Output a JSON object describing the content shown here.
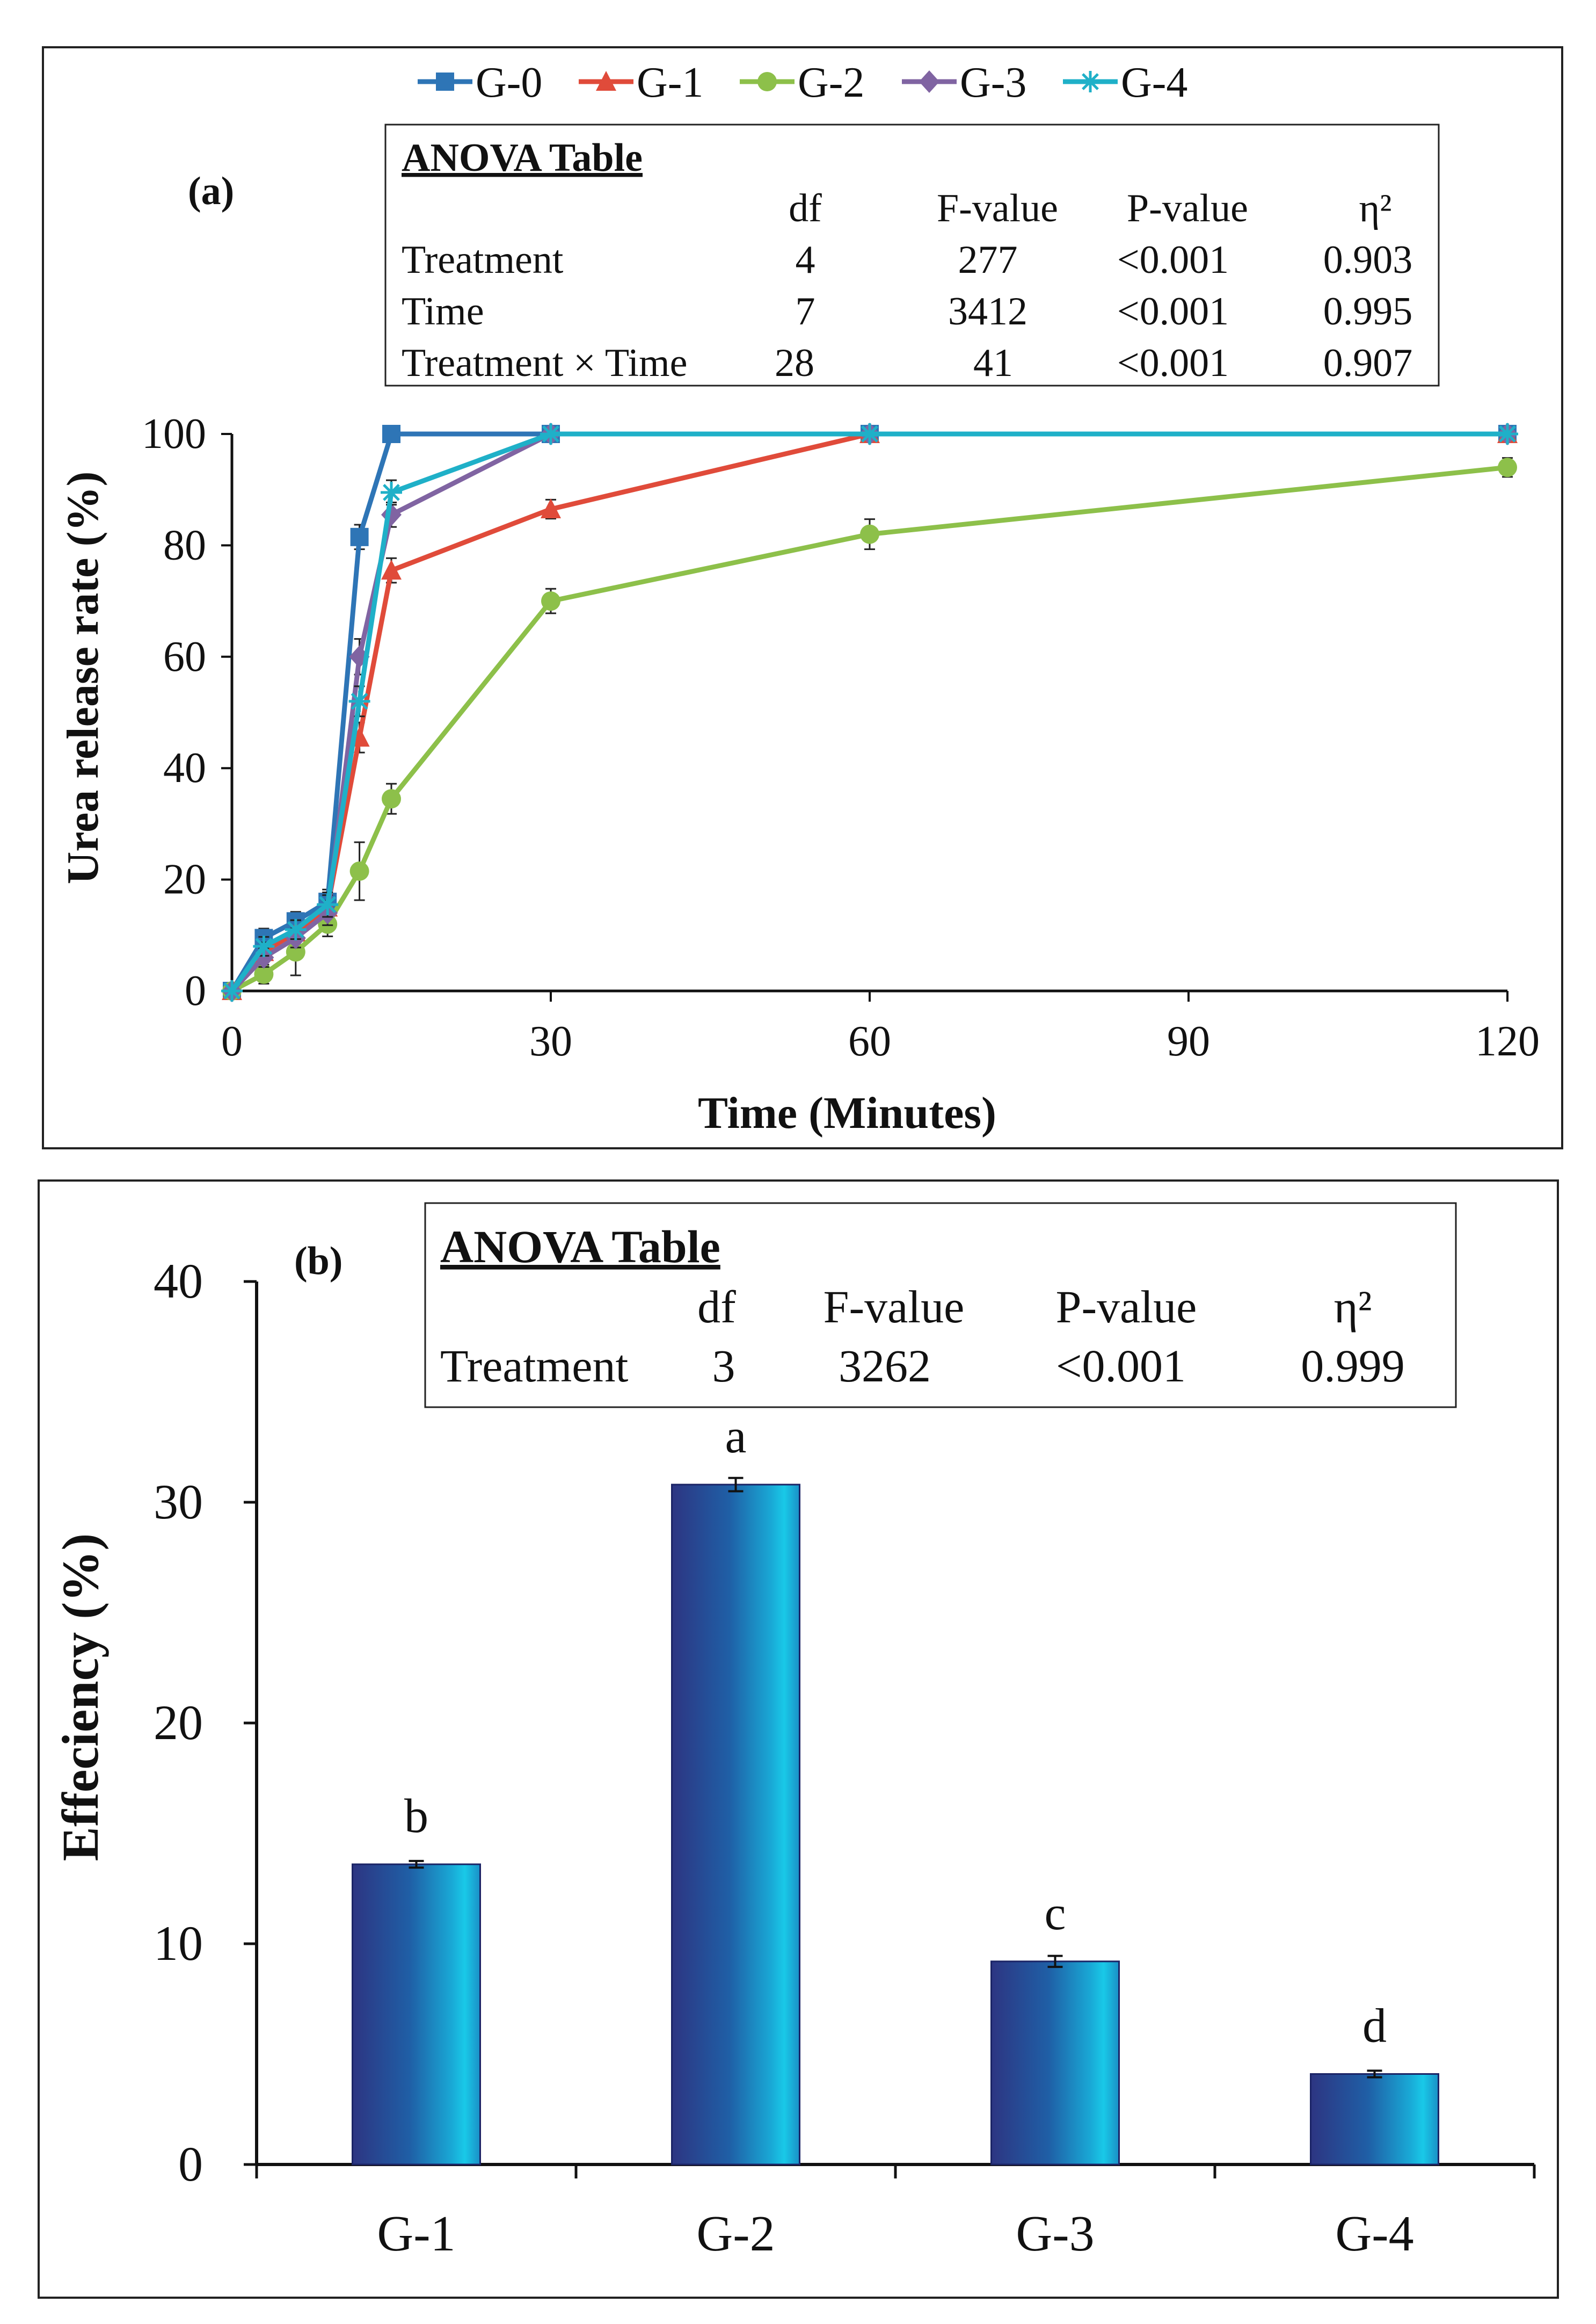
{
  "chart_data": [
    {
      "panel": "(a)",
      "type": "line",
      "xlabel": "Time (Minutes)",
      "ylabel": "Urea release rate (%)",
      "xlim": [
        0,
        120
      ],
      "ylim": [
        0,
        100
      ],
      "xticks": [
        0,
        30,
        60,
        90,
        120
      ],
      "yticks": [
        0,
        20,
        40,
        60,
        80,
        100
      ],
      "legend_position": "top",
      "series": [
        {
          "name": "G-0",
          "color": "#2e75b6",
          "marker": "square",
          "x": [
            0,
            3,
            6,
            9,
            12,
            15,
            30,
            60,
            120
          ],
          "y": [
            0,
            9.5,
            12.5,
            16,
            81.5,
            100,
            100,
            100,
            100
          ],
          "err": [
            0,
            0.5,
            0.5,
            1,
            1,
            0,
            0,
            0,
            0
          ]
        },
        {
          "name": "G-1",
          "color": "#e04b3a",
          "marker": "triangle",
          "x": [
            0,
            3,
            6,
            9,
            12,
            15,
            30,
            60,
            120
          ],
          "y": [
            0,
            7,
            10.5,
            15,
            45.5,
            75.5,
            86.5,
            100,
            100
          ],
          "err": [
            0,
            0.5,
            1,
            1,
            1.5,
            1,
            0.5,
            0,
            0
          ]
        },
        {
          "name": "G-2",
          "color": "#8dc04a",
          "marker": "circle",
          "x": [
            0,
            3,
            6,
            9,
            12,
            15,
            30,
            60,
            120
          ],
          "y": [
            0,
            3,
            7,
            12,
            21.5,
            34.5,
            70,
            82,
            94
          ],
          "err": [
            0,
            0.5,
            3,
            1,
            4,
            1.5,
            1,
            1.5,
            0.5
          ]
        },
        {
          "name": "G-3",
          "color": "#8064a2",
          "marker": "diamond",
          "x": [
            0,
            3,
            6,
            9,
            12,
            15,
            30,
            60,
            120
          ],
          "y": [
            0,
            6,
            9.5,
            14,
            60,
            85.5,
            100,
            100,
            100
          ],
          "err": [
            0,
            0.5,
            0.5,
            1,
            2,
            1,
            0,
            0,
            0
          ]
        },
        {
          "name": "G-4",
          "color": "#1fb0c8",
          "marker": "star",
          "x": [
            0,
            3,
            6,
            9,
            12,
            15,
            30,
            60,
            120
          ],
          "y": [
            0,
            8,
            11,
            15.5,
            52,
            89.5,
            100,
            100,
            100
          ],
          "err": [
            0,
            0.5,
            0.5,
            1,
            1.5,
            1,
            0,
            0,
            0
          ]
        }
      ],
      "anova": {
        "title": "ANOVA Table",
        "headers": [
          "df",
          "F-value",
          "P-value",
          "η²"
        ],
        "rows": [
          {
            "label": "Treatment",
            "df": "4",
            "f": "277",
            "p": "<0.001",
            "eta": "0.903"
          },
          {
            "label": "Time",
            "df": "7",
            "f": "3412",
            "p": "<0.001",
            "eta": "0.995"
          },
          {
            "label": "Treatment × Time",
            "df": "28",
            "f": "41",
            "p": "<0.001",
            "eta": "0.907"
          }
        ]
      }
    },
    {
      "panel": "(b)",
      "type": "bar",
      "xlabel": "",
      "ylabel": "Effeciency (%)",
      "ylim": [
        0,
        40
      ],
      "yticks": [
        0,
        10,
        20,
        30,
        40
      ],
      "categories": [
        "G-1",
        "G-2",
        "G-3",
        "G-4"
      ],
      "values": [
        13.6,
        30.8,
        9.2,
        4.1
      ],
      "err": [
        0.15,
        0.3,
        0.25,
        0.15
      ],
      "letters": [
        "b",
        "a",
        "c",
        "d"
      ],
      "colors": {
        "bar_dark": "#2d3582",
        "bar_mid": "#1f6fb0",
        "bar_light": "#19c3e3"
      },
      "anova": {
        "title": "ANOVA Table",
        "headers": [
          "df",
          "F-value",
          "P-value",
          "η²"
        ],
        "rows": [
          {
            "label": "Treatment",
            "df": "3",
            "f": "3262",
            "p": "<0.001",
            "eta": "0.999"
          }
        ]
      }
    }
  ]
}
